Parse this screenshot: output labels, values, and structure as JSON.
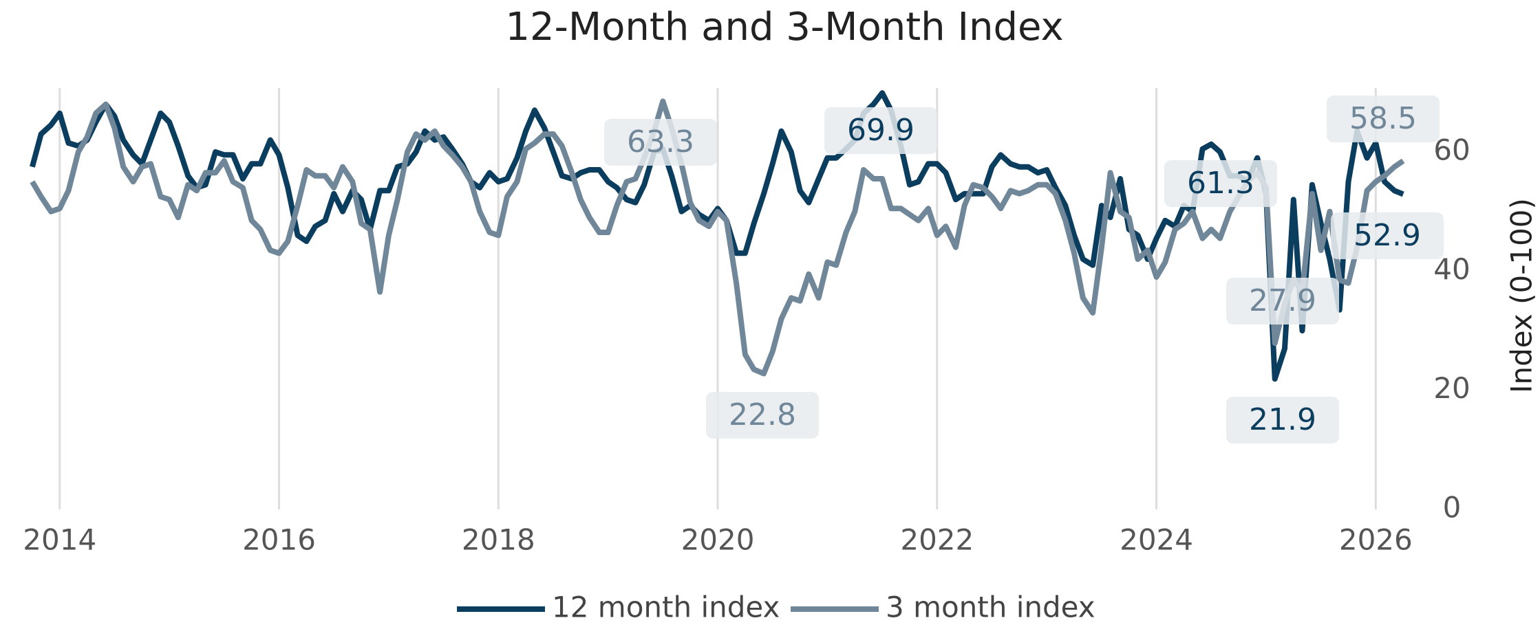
{
  "chart_data": {
    "type": "line",
    "title": "12-Month and 3-Month Index",
    "y_axis_label": "Index (0-100)",
    "x": [
      2013.75,
      2013.83,
      2013.92,
      2014,
      2014.08,
      2014.17,
      2014.25,
      2014.33,
      2014.42,
      2014.5,
      2014.58,
      2014.67,
      2014.75,
      2014.83,
      2014.92,
      2015,
      2015.08,
      2015.17,
      2015.25,
      2015.33,
      2015.42,
      2015.5,
      2015.58,
      2015.67,
      2015.75,
      2015.83,
      2015.92,
      2016,
      2016.08,
      2016.17,
      2016.25,
      2016.33,
      2016.42,
      2016.5,
      2016.58,
      2016.67,
      2016.75,
      2016.83,
      2016.92,
      2017,
      2017.08,
      2017.17,
      2017.25,
      2017.33,
      2017.42,
      2017.5,
      2017.58,
      2017.67,
      2017.75,
      2017.83,
      2017.92,
      2018,
      2018.08,
      2018.17,
      2018.25,
      2018.33,
      2018.42,
      2018.5,
      2018.58,
      2018.67,
      2018.75,
      2018.83,
      2018.92,
      2019,
      2019.08,
      2019.17,
      2019.25,
      2019.33,
      2019.42,
      2019.5,
      2019.58,
      2019.67,
      2019.75,
      2019.83,
      2019.92,
      2020,
      2020.08,
      2020.17,
      2020.25,
      2020.33,
      2020.42,
      2020.5,
      2020.58,
      2020.67,
      2020.75,
      2020.83,
      2020.92,
      2021,
      2021.08,
      2021.17,
      2021.25,
      2021.33,
      2021.42,
      2021.5,
      2021.58,
      2021.67,
      2021.75,
      2021.83,
      2021.92,
      2022,
      2022.08,
      2022.17,
      2022.25,
      2022.33,
      2022.42,
      2022.5,
      2022.58,
      2022.67,
      2022.75,
      2022.83,
      2022.92,
      2023,
      2023.08,
      2023.17,
      2023.25,
      2023.33,
      2023.42,
      2023.5,
      2023.58,
      2023.67,
      2023.75,
      2023.83,
      2023.92,
      2024,
      2024.08,
      2024.17,
      2024.25,
      2024.33,
      2024.42,
      2024.5,
      2024.58,
      2024.67,
      2024.75,
      2024.83,
      2024.92,
      2025,
      2025.08,
      2025.17,
      2025.25,
      2025.33,
      2025.42,
      2025.5,
      2025.58,
      2025.67,
      2025.75,
      2025.83,
      2025.92,
      2026,
      2026.08,
      2026.17,
      2026.25
    ],
    "series": [
      {
        "name": "12 month index",
        "color": "#0b3d5e",
        "values": [
          57.5,
          63,
          64.5,
          66.5,
          61.5,
          61,
          62,
          65,
          68,
          66,
          62,
          59.5,
          58,
          62,
          66.5,
          65,
          61,
          56,
          54,
          54.5,
          60,
          59.5,
          59.5,
          55.5,
          58,
          58,
          62,
          59.5,
          54,
          46,
          45,
          47.5,
          48.5,
          53,
          50,
          53.5,
          52,
          47,
          53.5,
          53.5,
          57.5,
          58,
          60,
          63.5,
          62,
          62.5,
          60.5,
          58,
          55,
          54,
          56.5,
          55,
          55.5,
          59,
          63.5,
          67,
          64,
          60,
          56,
          55.5,
          56.5,
          57,
          57,
          55,
          54,
          52,
          51.5,
          54.5,
          60,
          60.5,
          56,
          50,
          51,
          49.5,
          48.5,
          50.5,
          48.5,
          43,
          43,
          48,
          53,
          58,
          63.5,
          60,
          53.5,
          51.5,
          55.5,
          59,
          59,
          60.5,
          62,
          66.5,
          68,
          69.9,
          67,
          61,
          54.5,
          55,
          58,
          58,
          56.5,
          52,
          53,
          53,
          53,
          57.5,
          59.5,
          58,
          57.5,
          57.5,
          56.5,
          57,
          54,
          51,
          46,
          42,
          41,
          51,
          49,
          55.5,
          47,
          46,
          42,
          45.5,
          48.5,
          47.5,
          51,
          50,
          60.5,
          61.3,
          60,
          56,
          56,
          55,
          59,
          53,
          21.9,
          27,
          52,
          30,
          54.5,
          48,
          42,
          33.5,
          55,
          63.5,
          59,
          61.5,
          55,
          53.5,
          52.9
        ]
      },
      {
        "name": "3 month index",
        "color": "#6f8799",
        "values": [
          55,
          52.5,
          50,
          50.5,
          53.5,
          60,
          62.5,
          66.5,
          68,
          64,
          57.5,
          55,
          57.5,
          58,
          52.5,
          52,
          49,
          54.5,
          53.5,
          56.5,
          56.5,
          58.5,
          55,
          54,
          48.5,
          47,
          43.5,
          43,
          45,
          51,
          57,
          56,
          56,
          54,
          57.5,
          55,
          48,
          47,
          36.5,
          46,
          52,
          60,
          63,
          62,
          63.5,
          61,
          59.5,
          57.5,
          55,
          50,
          46.5,
          46,
          52.5,
          55,
          60.5,
          61.5,
          63,
          63,
          61,
          56.5,
          52,
          49,
          46.5,
          46.5,
          51,
          55,
          55.5,
          59,
          63.5,
          68.5,
          64,
          58,
          51.5,
          48.5,
          47.5,
          50,
          48.5,
          38,
          26,
          23.5,
          22.8,
          26.5,
          32,
          35.5,
          35,
          39.5,
          35.5,
          41.5,
          41,
          46.5,
          50,
          57,
          55.5,
          55.5,
          50.5,
          50.5,
          49.5,
          48.5,
          50.5,
          46,
          47.5,
          44,
          51,
          54.5,
          54,
          52.5,
          50.5,
          53.5,
          53,
          53.5,
          54.5,
          54.5,
          53,
          48.5,
          43,
          35.5,
          33,
          44,
          56.5,
          50,
          49,
          42,
          43.5,
          39,
          41.5,
          47,
          48,
          50,
          45.5,
          47,
          45.5,
          50,
          52.5,
          55,
          56.5,
          54,
          27.9,
          34.5,
          38.5,
          36.5,
          53,
          43.5,
          50,
          38.5,
          38,
          44,
          53.5,
          55,
          56,
          57.5,
          58.5
        ]
      }
    ],
    "annotations": [
      {
        "label": "63.3",
        "series": 1
      },
      {
        "label": "69.9",
        "series": 0
      },
      {
        "label": "22.8",
        "series": 1
      },
      {
        "label": "61.3",
        "series": 0
      },
      {
        "label": "27.9",
        "series": 1
      },
      {
        "label": "21.9",
        "series": 0
      },
      {
        "label": "58.5",
        "series": 1
      },
      {
        "label": "52.9",
        "series": 0
      }
    ],
    "xlim": [
      2013.6,
      2026.5
    ],
    "xticks": [
      2014,
      2016,
      2018,
      2020,
      2022,
      2024,
      2026
    ],
    "ylim": [
      0,
      72
    ],
    "yticks": [
      0,
      20,
      40,
      60
    ],
    "grid": "x",
    "y_axis_side": "right",
    "legend": "bottom"
  }
}
